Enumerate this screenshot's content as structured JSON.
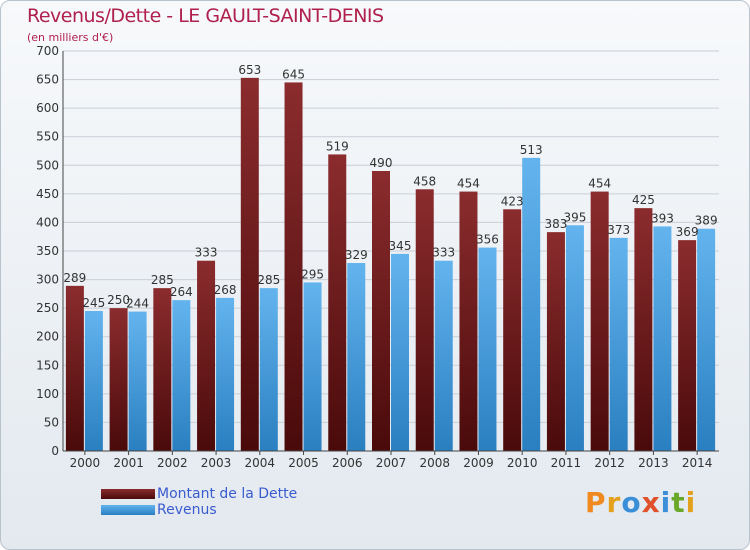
{
  "title": "Revenus/Dette - LE GAULT-SAINT-DENIS",
  "subtitle": "(en milliers d'€)",
  "logo": "Proxiti",
  "colors": {
    "dette_dark": "#4a0a0a",
    "dette_light": "#8b2c2e",
    "revenus_dark": "#2a7fc0",
    "revenus_light": "#63b4ee",
    "label": "#333333"
  },
  "chart_data": {
    "type": "bar",
    "title": "Revenus/Dette - LE GAULT-SAINT-DENIS",
    "subtitle": "(en milliers d'€)",
    "categories": [
      "2000",
      "2001",
      "2002",
      "2003",
      "2004",
      "2005",
      "2006",
      "2007",
      "2008",
      "2009",
      "2010",
      "2011",
      "2012",
      "2013",
      "2014"
    ],
    "series": [
      {
        "name": "Montant de la Dette",
        "values": [
          289,
          250,
          285,
          333,
          653,
          645,
          519,
          490,
          458,
          454,
          423,
          383,
          454,
          425,
          369
        ]
      },
      {
        "name": "Revenus",
        "values": [
          245,
          244,
          264,
          268,
          285,
          295,
          329,
          345,
          333,
          356,
          513,
          395,
          373,
          393,
          389
        ]
      }
    ],
    "ylim": [
      0,
      700
    ],
    "yticks": [
      0,
      50,
      100,
      150,
      200,
      250,
      300,
      350,
      400,
      450,
      500,
      550,
      600,
      650,
      700
    ],
    "grid": true,
    "legend_position": "bottom-left"
  }
}
